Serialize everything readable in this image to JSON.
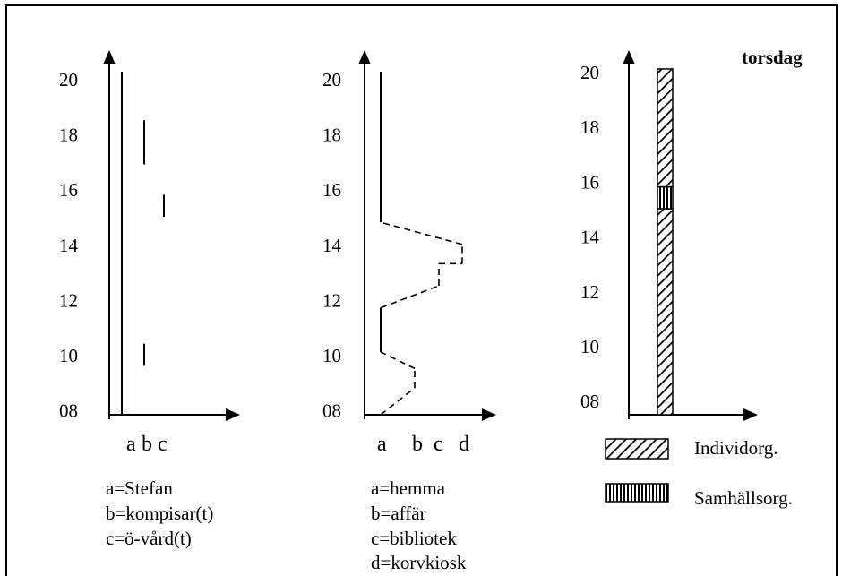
{
  "panel_title": "torsdag",
  "y_ticks": [
    "20",
    "18",
    "16",
    "14",
    "12",
    "10",
    "08"
  ],
  "chart1": {
    "x_categories": [
      "a",
      "b",
      "c"
    ],
    "legend": [
      "a=Stefan",
      "b=kompisar(t)",
      "c=ö-vård(t)"
    ]
  },
  "chart2": {
    "x_categories": [
      "a",
      "b",
      "c",
      "d"
    ],
    "legend": [
      "a=hemma",
      "b=affär",
      "c=bibliotek",
      "d=korvkiosk"
    ]
  },
  "chart3": {
    "legend": [
      {
        "label": "Individorg.",
        "pattern": "diagonal-hatch"
      },
      {
        "label": "Samhällsorg.",
        "pattern": "vertical-stripes"
      }
    ]
  },
  "chart_data": [
    {
      "type": "line",
      "ylim": [
        8,
        20
      ],
      "categories": [
        "a",
        "b",
        "c"
      ],
      "series": [
        {
          "category": "a",
          "intervals": [
            [
              8,
              20.3
            ]
          ]
        },
        {
          "category": "b",
          "intervals": [
            [
              9.6,
              10.4
            ],
            [
              16.9,
              18.5
            ]
          ]
        },
        {
          "category": "c",
          "intervals": [
            [
              15,
              15.8
            ]
          ]
        }
      ]
    },
    {
      "type": "line",
      "ylim": [
        8,
        20
      ],
      "categories": [
        "a",
        "b",
        "c",
        "d"
      ],
      "path": [
        {
          "place": "a",
          "time": 8.0
        },
        {
          "place": "b",
          "time": 8.8
        },
        {
          "place": "b",
          "time": 9.5
        },
        {
          "place": "a",
          "time": 10.1
        },
        {
          "place": "a",
          "time": 11.7
        },
        {
          "place": "c",
          "time": 12.5
        },
        {
          "place": "c",
          "time": 13.3
        },
        {
          "place": "d",
          "time": 13.3
        },
        {
          "place": "d",
          "time": 14.0
        },
        {
          "place": "a",
          "time": 14.8
        },
        {
          "place": "a",
          "time": 20.3
        }
      ]
    },
    {
      "type": "bar",
      "ylim": [
        8,
        20
      ],
      "segments": [
        {
          "from": 8.0,
          "to": 15.0,
          "pattern": "diagonal-hatch"
        },
        {
          "from": 15.0,
          "to": 15.8,
          "pattern": "vertical-stripes"
        },
        {
          "from": 15.8,
          "to": 20.1,
          "pattern": "diagonal-hatch"
        }
      ]
    }
  ]
}
